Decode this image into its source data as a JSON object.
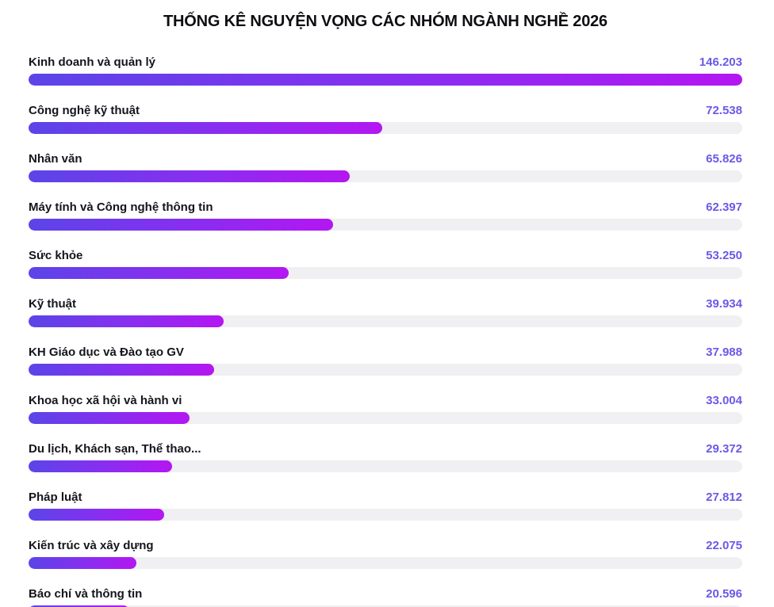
{
  "header": {
    "title": "THỐNG KÊ NGUYỆN VỌNG CÁC NHÓM NGÀNH NGHỀ 2026"
  },
  "colors": {
    "background": "#ffffff",
    "title_text": "#0d0d12",
    "label_text": "#15151e",
    "value_text": "#6a59e8",
    "track": "#f0f0f3",
    "bar_gradient_start": "#5b45e8",
    "bar_gradient_end": "#b416f2"
  },
  "chart_data": {
    "type": "bar",
    "orientation": "horizontal",
    "title": "THỐNG KÊ NGUYỆN VỌNG CÁC NHÓM NGÀNH NGHỀ 2026",
    "max_value": 146203,
    "value_format": "dot-thousands-separator",
    "legend": "none",
    "grid": "off",
    "categories": [
      "Kinh doanh và quản lý",
      "Công nghệ kỹ thuật",
      "Nhân văn",
      "Máy tính và Công nghệ thông tin",
      "Sức khỏe",
      "Kỹ thuật",
      "KH Giáo dục và Đào tạo GV",
      "Khoa học xã hội và hành vi",
      "Du lịch, Khách sạn, Thể thao...",
      "Pháp luật",
      "Kiến trúc và xây dựng",
      "Báo chí và thông tin"
    ],
    "values": [
      146203,
      72538,
      65826,
      62397,
      53250,
      39934,
      37988,
      33004,
      29372,
      27812,
      22075,
      20596
    ],
    "value_labels": [
      "146.203",
      "72.538",
      "65.826",
      "62.397",
      "53.250",
      "39.934",
      "37.988",
      "33.004",
      "29.372",
      "27.812",
      "22.075",
      "20.596"
    ]
  }
}
